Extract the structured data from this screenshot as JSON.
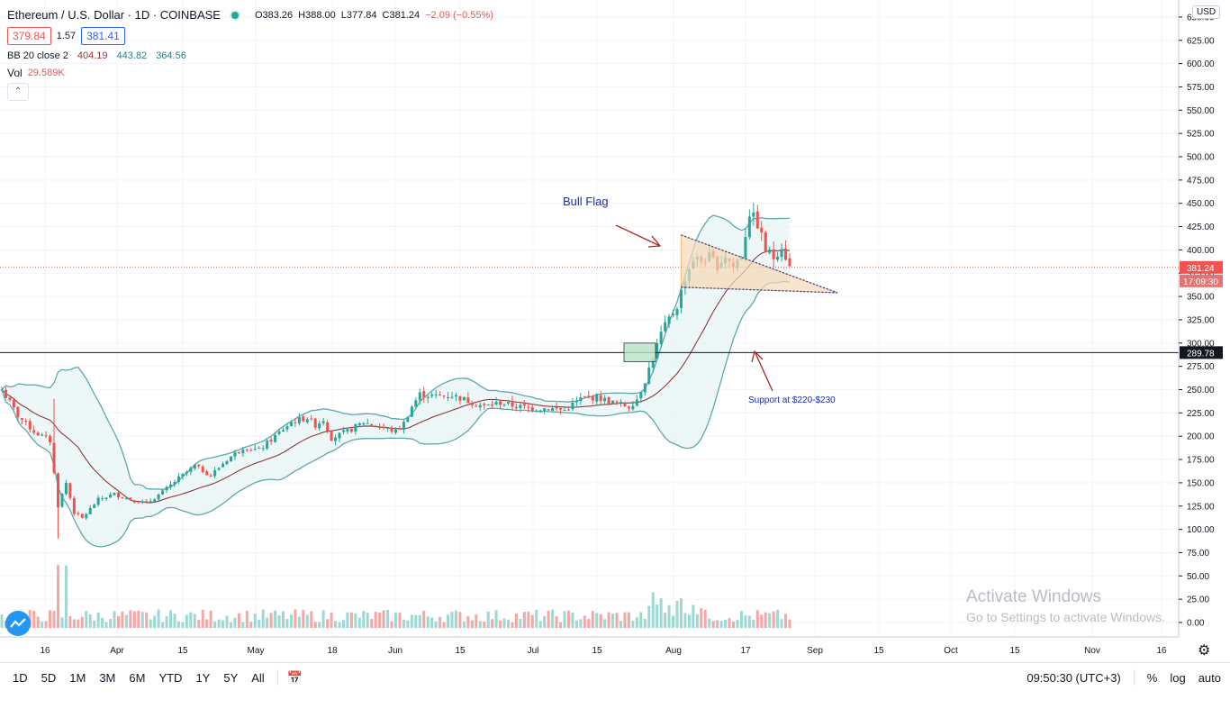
{
  "legend": {
    "title": "Ethereum / U.S. Dollar · 1D · COINBASE",
    "ohlc": {
      "o": "O383.26",
      "h": "H388.00",
      "l": "L377.84",
      "c": "C381.24",
      "change": "−2.09 (−0.55%)"
    },
    "bid": "379.84",
    "spread": "1.57",
    "ask": "381.41",
    "bb_label": "BB 20 close 2",
    "bb_mid": "404.19",
    "bb_upper": "443.82",
    "bb_lower": "364.56",
    "vol_label": "Vol",
    "vol_value": "29.589K"
  },
  "currency": "USD",
  "price_tags": {
    "last": "381.24",
    "countdown": "17:09:30",
    "level": "289.78"
  },
  "annotations": {
    "bull_flag": "Bull Flag",
    "support": "Support at $220-$230"
  },
  "watermark": {
    "line1": "Activate Windows",
    "line2": "Go to Settings to activate Windows."
  },
  "bottom": {
    "timeframes": [
      "1D",
      "5D",
      "1M",
      "3M",
      "6M",
      "YTD",
      "1Y",
      "5Y",
      "All"
    ],
    "clock": "09:50:30 (UTC+3)",
    "percent": "%",
    "log": "log",
    "auto": "auto"
  },
  "colors": {
    "up": "#26a69a",
    "down": "#ef5350",
    "bb_band": "#5fa8a8",
    "bb_mid": "#8b3a3a",
    "fill": "#e6f4f4"
  },
  "chart_data": {
    "type": "candlestick",
    "title": "Ethereum / U.S. Dollar · 1D · COINBASE",
    "y_ticks": [
      "650.00",
      "625.00",
      "600.00",
      "575.00",
      "550.00",
      "525.00",
      "500.00",
      "475.00",
      "450.00",
      "425.00",
      "400.00",
      "375.00",
      "350.00",
      "325.00",
      "300.00",
      "275.00",
      "250.00",
      "225.00",
      "200.00",
      "175.00",
      "150.00",
      "125.00",
      "100.00",
      "75.00",
      "50.00",
      "25.00",
      "0.00"
    ],
    "x_ticks": [
      "16",
      "Apr",
      "15",
      "May",
      "18",
      "Jun",
      "15",
      "Jul",
      "15",
      "Aug",
      "17",
      "Sep",
      "15",
      "Oct",
      "15",
      "Nov",
      "16"
    ],
    "horizontal_level": 289.78,
    "last_price": 381.24,
    "series_waypoints_close": [
      [
        0,
        250
      ],
      [
        4,
        222
      ],
      [
        8,
        205
      ],
      [
        12,
        195
      ],
      [
        14,
        125
      ],
      [
        16,
        150
      ],
      [
        18,
        118
      ],
      [
        20,
        112
      ],
      [
        24,
        132
      ],
      [
        28,
        138
      ],
      [
        32,
        132
      ],
      [
        36,
        128
      ],
      [
        40,
        140
      ],
      [
        44,
        155
      ],
      [
        48,
        168
      ],
      [
        52,
        158
      ],
      [
        56,
        175
      ],
      [
        60,
        188
      ],
      [
        64,
        185
      ],
      [
        68,
        200
      ],
      [
        72,
        215
      ],
      [
        76,
        220
      ],
      [
        78,
        212
      ],
      [
        80,
        218
      ],
      [
        82,
        198
      ],
      [
        86,
        205
      ],
      [
        90,
        215
      ],
      [
        94,
        210
      ],
      [
        98,
        205
      ],
      [
        100,
        214
      ],
      [
        102,
        232
      ],
      [
        104,
        245
      ],
      [
        108,
        243
      ],
      [
        112,
        244
      ],
      [
        116,
        238
      ],
      [
        120,
        232
      ],
      [
        124,
        236
      ],
      [
        128,
        232
      ],
      [
        132,
        230
      ],
      [
        136,
        230
      ],
      [
        140,
        228
      ],
      [
        144,
        240
      ],
      [
        148,
        242
      ],
      [
        152,
        236
      ],
      [
        156,
        232
      ],
      [
        158,
        240
      ],
      [
        160,
        260
      ],
      [
        162,
        285
      ],
      [
        164,
        310
      ],
      [
        166,
        326
      ],
      [
        168,
        340
      ],
      [
        170,
        370
      ],
      [
        172,
        390
      ],
      [
        174,
        388
      ],
      [
        176,
        392
      ],
      [
        178,
        384
      ],
      [
        180,
        394
      ],
      [
        182,
        382
      ],
      [
        184,
        395
      ],
      [
        186,
        440
      ],
      [
        188,
        428
      ],
      [
        190,
        400
      ],
      [
        192,
        392
      ],
      [
        194,
        405
      ],
      [
        196,
        381
      ]
    ],
    "volume_note": "daily volume histogram, peak ~60 (in price-axis units)",
    "bollinger": {
      "period": 20,
      "mult": 2
    }
  }
}
